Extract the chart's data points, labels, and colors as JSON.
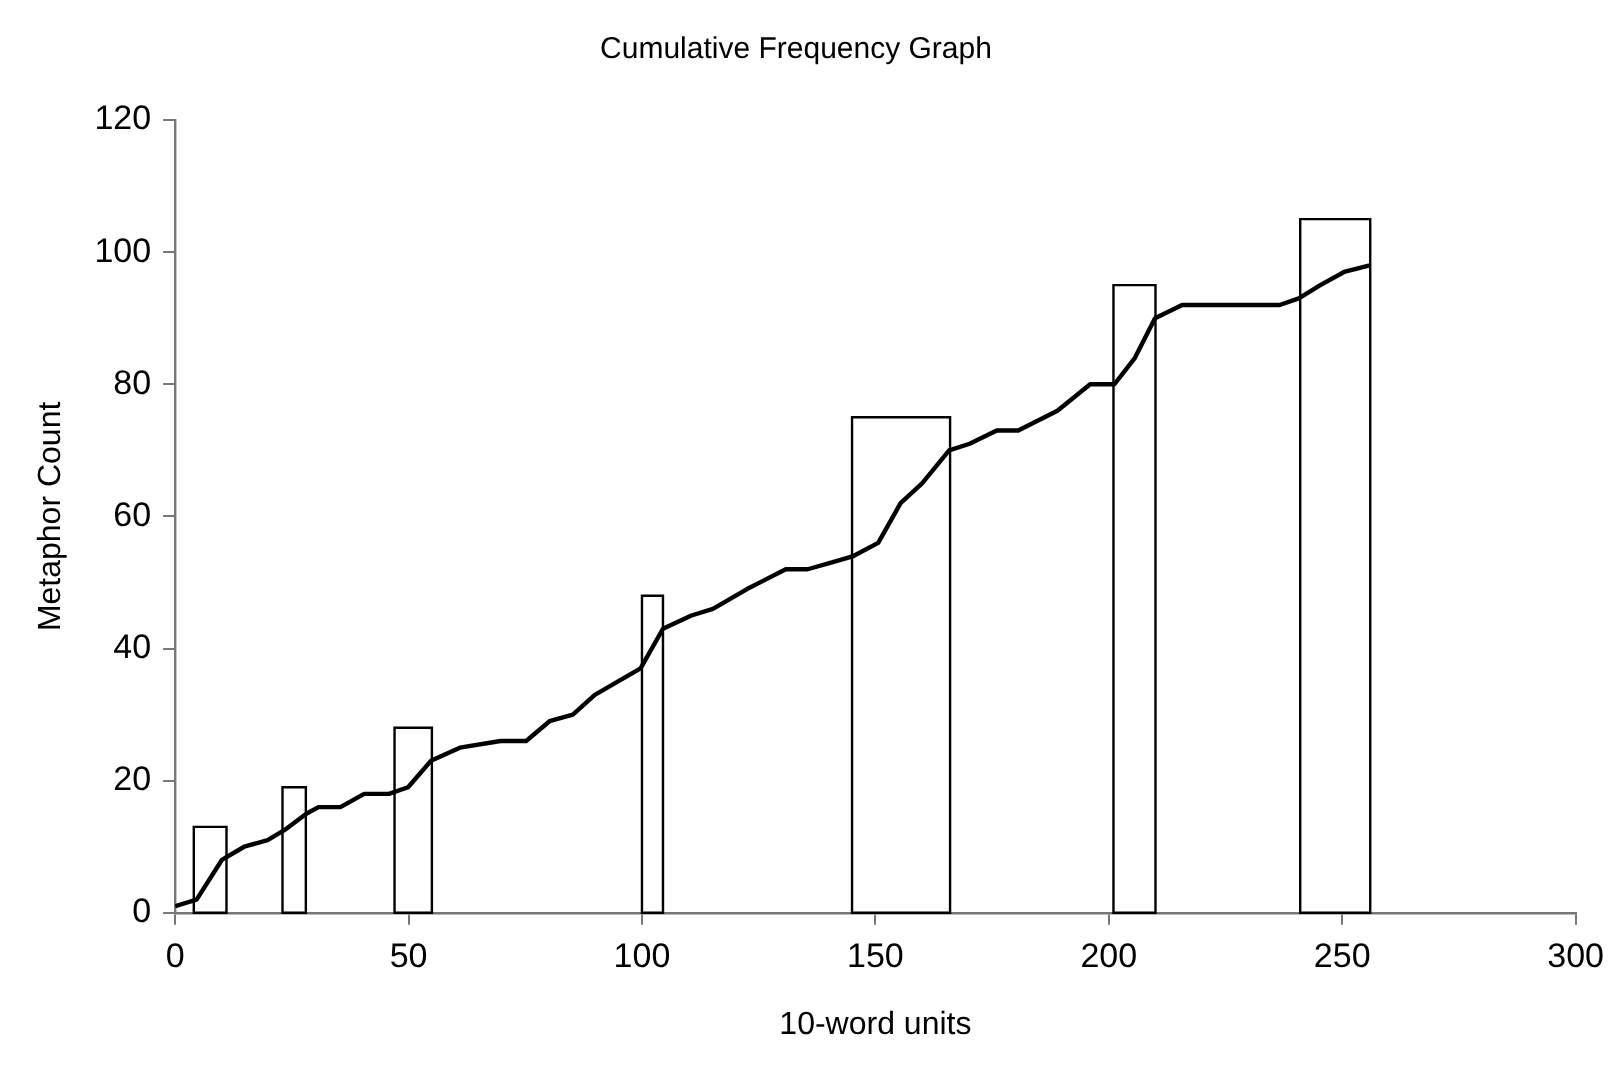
{
  "chart_data": {
    "type": "histogram",
    "title": "Cumulative Frequency Graph",
    "xlabel": "10-word units",
    "ylabel": "Metaphor Count",
    "bins": [
      4,
      11,
      23,
      28,
      47,
      55,
      100,
      104.5,
      145,
      166,
      201,
      210,
      241,
      256
    ],
    "values": [
      13,
      null,
      19,
      null,
      28,
      null,
      48,
      null,
      75,
      null,
      95,
      null,
      105
    ],
    "color": "#ffffff",
    "series": [
      {
        "type": "line",
        "color": "#000000",
        "x": [
          0,
          4.6,
          10,
          14.8,
          19.8,
          23.4,
          28.1,
          30.7,
          35.4,
          40.5,
          45.8,
          49.9,
          54.8,
          61,
          69.7,
          75.2,
          80.2,
          85.2,
          89.9,
          99.7,
          104.5,
          110.6,
          115.2,
          122.5,
          130.8,
          135.5,
          140.5,
          145.3,
          150.6,
          155.4,
          160,
          165.8,
          170.2,
          176,
          180.6,
          189,
          196,
          201.2,
          205.6,
          209.9,
          215.7,
          236.6,
          240.7,
          245.3,
          250.4,
          255.9
        ],
        "values": [
          1,
          2,
          8,
          10,
          11,
          12.5,
          15,
          16,
          16,
          18,
          18,
          19,
          23,
          25,
          26,
          26,
          29,
          30,
          33,
          37,
          43,
          45,
          46,
          49,
          52,
          52,
          53,
          54,
          56,
          62,
          65,
          70,
          71,
          73,
          73,
          76,
          80,
          80,
          84,
          90,
          92,
          92,
          93,
          95,
          97,
          98
        ]
      }
    ],
    "xlim": [
      0,
      300
    ],
    "xticks": [
      0,
      50,
      100,
      150,
      200,
      250,
      300
    ],
    "ylim": [
      0,
      120
    ],
    "yticks": [
      0,
      20,
      40,
      60,
      80,
      100,
      120
    ],
    "grid": false,
    "legend": false,
    "marker": "none",
    "line_style": "solid"
  }
}
